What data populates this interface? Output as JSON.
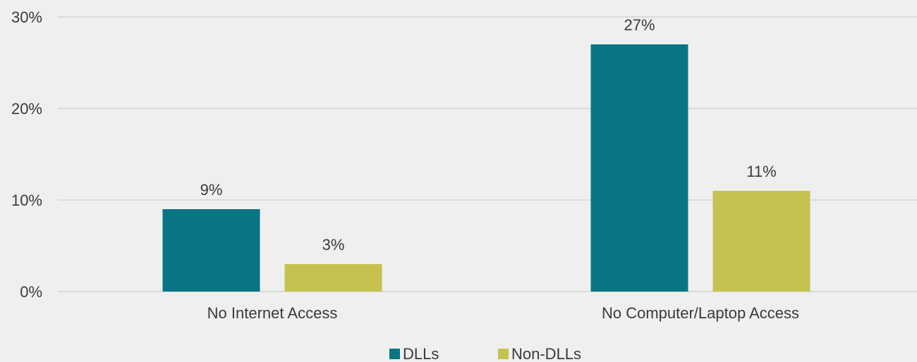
{
  "chart_data": {
    "type": "bar",
    "categories": [
      "No Internet Access",
      "No Computer/Laptop Access"
    ],
    "series": [
      {
        "name": "DLLs",
        "values": [
          9,
          27
        ],
        "labels": [
          "9%",
          "27%"
        ],
        "color": "#087585"
      },
      {
        "name": "Non-DLLs",
        "values": [
          3,
          11
        ],
        "labels": [
          "3%",
          "11%"
        ],
        "color": "#c6c24f"
      }
    ],
    "ylim": [
      0,
      30
    ],
    "yticks": [
      "0%",
      "10%",
      "20%",
      "30%"
    ],
    "grid": true,
    "legend": "bottom-center"
  }
}
